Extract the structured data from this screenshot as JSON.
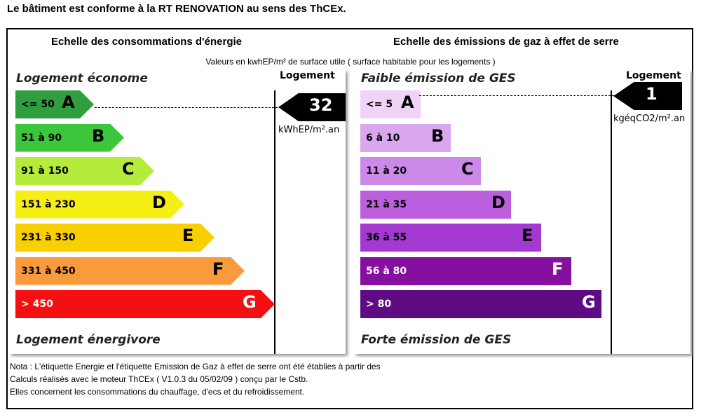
{
  "title": "Le bâtiment est conforme à la RT RENOVATION au sens des ThCEx.",
  "energy": {
    "title": "Echelle des consommations d'énergie",
    "top_label": "Logement économe",
    "bottom_label": "Logement énergivore",
    "column_header": "Logement",
    "value": "32",
    "unit": "kWhEP/m².an",
    "rating": "A",
    "bars": [
      {
        "range": "<= 50",
        "letter": "A",
        "color": "#2e9e3e"
      },
      {
        "range": "51 à 90",
        "letter": "B",
        "color": "#3cc63c"
      },
      {
        "range": "91 à 150",
        "letter": "C",
        "color": "#b5ec3c"
      },
      {
        "range": "151 à 230",
        "letter": "D",
        "color": "#f6ef13"
      },
      {
        "range": "231 à 330",
        "letter": "E",
        "color": "#f9cf00"
      },
      {
        "range": "331 à 450",
        "letter": "F",
        "color": "#f99b3c"
      },
      {
        "range": "> 450",
        "letter": "G",
        "color": "#f41010"
      }
    ]
  },
  "ges": {
    "title": "Echelle des émissions de gaz à effet de serre",
    "top_label": "Faible émission de GES",
    "bottom_label": "Forte émission de GES",
    "column_header": "Logement",
    "value": "1",
    "unit": "kgéqCO2/m².an",
    "rating": "A",
    "bars": [
      {
        "range": "<= 5",
        "letter": "A",
        "color": "#f0d4f8"
      },
      {
        "range": "6 à 10",
        "letter": "B",
        "color": "#dba6f0"
      },
      {
        "range": "11 à 20",
        "letter": "C",
        "color": "#cc8ae8"
      },
      {
        "range": "21 à 35",
        "letter": "D",
        "color": "#bb5fde"
      },
      {
        "range": "36 à 55",
        "letter": "E",
        "color": "#a339d0"
      },
      {
        "range": "56 à 80",
        "letter": "F",
        "color": "#850f9f"
      },
      {
        "range": "> 80",
        "letter": "G",
        "color": "#5e0b84"
      }
    ]
  },
  "units_note": "Valeurs en kwhEP/m² de surface utile ( surface habitable pour les logements )",
  "nota": [
    "Nota : L'étiquette Energie et l'étiquette Emission de Gaz à effet de serre ont été établies à partir des",
    "Calculs réalisés avec le moteur ThCEx ( V1.0.3 du 05/02/09 ) conçu par le Cstb.",
    "Elles concernent les consommations du chauffage, d'ecs et du refroidissement."
  ]
}
